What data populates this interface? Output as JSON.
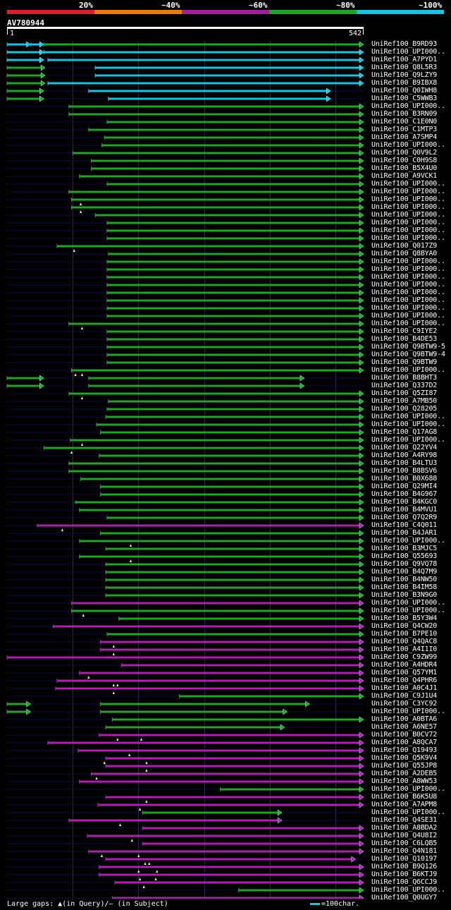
{
  "scale": {
    "labels": [
      "20%",
      "~40%",
      "~60%",
      "~80%",
      "~100%"
    ],
    "colors": [
      "#e01b2d",
      "#e87a12",
      "#a0209a",
      "#22a329",
      "#1ec0dd"
    ]
  },
  "query": {
    "name": "AV780944",
    "start": "1",
    "end": "542",
    "length": 542
  },
  "colors": {
    "cyan": "#1ec0dd",
    "green": "#22a329",
    "magenta": "#b01fb0",
    "backbone": "#0c0c4a",
    "gap": "#ffff99"
  },
  "hits": [
    {
      "name": "UniRef100_B9RD93",
      "segs": [
        [
          0,
          36,
          "cyan"
        ],
        [
          36,
          56,
          "cyan"
        ],
        [
          56,
          542,
          "green"
        ]
      ],
      "gaps": []
    },
    {
      "name": "UniRef100_UPI000..",
      "segs": [
        [
          0,
          56,
          "cyan"
        ],
        [
          56,
          542,
          "cyan"
        ]
      ],
      "gaps": []
    },
    {
      "name": "UniRef100_A7PYD1",
      "segs": [
        [
          0,
          56,
          "cyan"
        ],
        [
          62,
          542,
          "cyan"
        ]
      ],
      "gaps": []
    },
    {
      "name": "UniRef100_Q8L5R3",
      "segs": [
        [
          0,
          58,
          "green"
        ],
        [
          134,
          542,
          "cyan"
        ]
      ],
      "gaps": []
    },
    {
      "name": "UniRef100_Q9LZY9",
      "segs": [
        [
          0,
          58,
          "green"
        ],
        [
          134,
          542,
          "cyan"
        ]
      ],
      "gaps": []
    },
    {
      "name": "UniRef100_B9IBX8",
      "segs": [
        [
          0,
          58,
          "green"
        ],
        [
          62,
          542,
          "cyan"
        ]
      ],
      "gaps": []
    },
    {
      "name": "UniRef100_Q0IWH8",
      "segs": [
        [
          0,
          56,
          "green"
        ],
        [
          124,
          492,
          "cyan"
        ]
      ],
      "gaps": []
    },
    {
      "name": "UniRef100_C5WWB3",
      "segs": [
        [
          0,
          56,
          "green"
        ],
        [
          154,
          492,
          "cyan"
        ]
      ],
      "gaps": []
    },
    {
      "name": "UniRef100_UPI000..",
      "segs": [
        [
          94,
          542,
          "green"
        ]
      ],
      "gaps": []
    },
    {
      "name": "UniRef100_B3RN09",
      "segs": [
        [
          94,
          542,
          "green"
        ]
      ],
      "gaps": []
    },
    {
      "name": "UniRef100_C1E0N0",
      "segs": [
        [
          152,
          542,
          "green"
        ]
      ],
      "gaps": []
    },
    {
      "name": "UniRef100_C1MTP3",
      "segs": [
        [
          124,
          542,
          "green"
        ]
      ],
      "gaps": []
    },
    {
      "name": "UniRef100_A7SMP4",
      "segs": [
        [
          148,
          542,
          "green"
        ]
      ],
      "gaps": []
    },
    {
      "name": "UniRef100_UPI000..",
      "segs": [
        [
          144,
          542,
          "green"
        ]
      ],
      "gaps": []
    },
    {
      "name": "UniRef100_Q0V9L2",
      "segs": [
        [
          100,
          542,
          "green"
        ]
      ],
      "gaps": []
    },
    {
      "name": "UniRef100_C0H9S8",
      "segs": [
        [
          128,
          542,
          "green"
        ]
      ],
      "gaps": []
    },
    {
      "name": "UniRef100_B5X4U0",
      "segs": [
        [
          128,
          542,
          "green"
        ]
      ],
      "gaps": []
    },
    {
      "name": "UniRef100_A9VCK1",
      "segs": [
        [
          110,
          542,
          "green"
        ]
      ],
      "gaps": []
    },
    {
      "name": "UniRef100_UPI000..",
      "segs": [
        [
          152,
          542,
          "green"
        ]
      ],
      "gaps": []
    },
    {
      "name": "UniRef100_UPI000..",
      "segs": [
        [
          94,
          542,
          "green"
        ]
      ],
      "gaps": []
    },
    {
      "name": "UniRef100_UPI000..",
      "segs": [
        [
          98,
          542,
          "green"
        ]
      ],
      "gaps": [
        112
      ]
    },
    {
      "name": "UniRef100_UPI000..",
      "segs": [
        [
          98,
          542,
          "green"
        ]
      ],
      "gaps": [
        112
      ]
    },
    {
      "name": "UniRef100_UPI000..",
      "segs": [
        [
          134,
          542,
          "green"
        ]
      ],
      "gaps": []
    },
    {
      "name": "UniRef100_UPI000..",
      "segs": [
        [
          152,
          542,
          "green"
        ]
      ],
      "gaps": []
    },
    {
      "name": "UniRef100_UPI000..",
      "segs": [
        [
          152,
          542,
          "green"
        ]
      ],
      "gaps": []
    },
    {
      "name": "UniRef100_UPI000..",
      "segs": [
        [
          152,
          542,
          "green"
        ]
      ],
      "gaps": []
    },
    {
      "name": "UniRef100_Q017Z9",
      "segs": [
        [
          76,
          542,
          "green"
        ]
      ],
      "gaps": [
        102
      ]
    },
    {
      "name": "UniRef100_Q8BYA0",
      "segs": [
        [
          154,
          542,
          "green"
        ]
      ],
      "gaps": []
    },
    {
      "name": "UniRef100_UPI000..",
      "segs": [
        [
          152,
          542,
          "green"
        ]
      ],
      "gaps": []
    },
    {
      "name": "UniRef100_UPI000..",
      "segs": [
        [
          152,
          542,
          "green"
        ]
      ],
      "gaps": []
    },
    {
      "name": "UniRef100_UPI000..",
      "segs": [
        [
          152,
          542,
          "green"
        ]
      ],
      "gaps": []
    },
    {
      "name": "UniRef100_UPI000..",
      "segs": [
        [
          152,
          542,
          "green"
        ]
      ],
      "gaps": []
    },
    {
      "name": "UniRef100_UPI000..",
      "segs": [
        [
          152,
          542,
          "green"
        ]
      ],
      "gaps": []
    },
    {
      "name": "UniRef100_UPI000..",
      "segs": [
        [
          152,
          542,
          "green"
        ]
      ],
      "gaps": []
    },
    {
      "name": "UniRef100_UPI000..",
      "segs": [
        [
          152,
          542,
          "green"
        ]
      ],
      "gaps": []
    },
    {
      "name": "UniRef100_UPI000..",
      "segs": [
        [
          152,
          542,
          "green"
        ]
      ],
      "gaps": []
    },
    {
      "name": "UniRef100_UPI000..",
      "segs": [
        [
          94,
          542,
          "green"
        ]
      ],
      "gaps": [
        114
      ]
    },
    {
      "name": "UniRef100_C9IYE2",
      "segs": [
        [
          152,
          542,
          "green"
        ]
      ],
      "gaps": []
    },
    {
      "name": "UniRef100_B4DE53",
      "segs": [
        [
          152,
          542,
          "green"
        ]
      ],
      "gaps": []
    },
    {
      "name": "UniRef100_Q9BTW9-5",
      "segs": [
        [
          152,
          542,
          "green"
        ]
      ],
      "gaps": []
    },
    {
      "name": "UniRef100_Q9BTW9-4",
      "segs": [
        [
          152,
          542,
          "green"
        ]
      ],
      "gaps": []
    },
    {
      "name": "UniRef100_Q9BTW9",
      "segs": [
        [
          152,
          542,
          "green"
        ]
      ],
      "gaps": []
    },
    {
      "name": "UniRef100_UPI000..",
      "segs": [
        [
          98,
          542,
          "green"
        ]
      ],
      "gaps": [
        104,
        114
      ]
    },
    {
      "name": "UniRef100_B8BHT3",
      "segs": [
        [
          0,
          56,
          "green"
        ],
        [
          124,
          452,
          "green"
        ]
      ],
      "gaps": []
    },
    {
      "name": "UniRef100_Q337D2",
      "segs": [
        [
          0,
          56,
          "green"
        ],
        [
          124,
          452,
          "green"
        ]
      ],
      "gaps": []
    },
    {
      "name": "UniRef100_Q5ZI87",
      "segs": [
        [
          94,
          542,
          "green"
        ]
      ],
      "gaps": [
        114
      ]
    },
    {
      "name": "UniRef100_A7MB50",
      "segs": [
        [
          154,
          542,
          "green"
        ]
      ],
      "gaps": []
    },
    {
      "name": "UniRef100_Q28205",
      "segs": [
        [
          152,
          542,
          "green"
        ]
      ],
      "gaps": []
    },
    {
      "name": "UniRef100_UPI000..",
      "segs": [
        [
          150,
          542,
          "green"
        ]
      ],
      "gaps": []
    },
    {
      "name": "UniRef100_UPI000..",
      "segs": [
        [
          136,
          542,
          "green"
        ]
      ],
      "gaps": []
    },
    {
      "name": "UniRef100_Q17AG8",
      "segs": [
        [
          142,
          542,
          "green"
        ]
      ],
      "gaps": []
    },
    {
      "name": "UniRef100_UPI000..",
      "segs": [
        [
          96,
          542,
          "green"
        ]
      ],
      "gaps": [
        114
      ]
    },
    {
      "name": "UniRef100_Q22YV4",
      "segs": [
        [
          56,
          542,
          "green"
        ]
      ],
      "gaps": [
        98
      ]
    },
    {
      "name": "UniRef100_A4RY98",
      "segs": [
        [
          140,
          542,
          "green"
        ]
      ],
      "gaps": []
    },
    {
      "name": "UniRef100_B4LTU3",
      "segs": [
        [
          94,
          542,
          "green"
        ]
      ],
      "gaps": []
    },
    {
      "name": "UniRef100_B8BSV6",
      "segs": [
        [
          94,
          542,
          "green"
        ]
      ],
      "gaps": []
    },
    {
      "name": "UniRef100_B0X688",
      "segs": [
        [
          112,
          542,
          "green"
        ]
      ],
      "gaps": []
    },
    {
      "name": "UniRef100_Q29MI4",
      "segs": [
        [
          142,
          542,
          "green"
        ]
      ],
      "gaps": []
    },
    {
      "name": "UniRef100_B4G967",
      "segs": [
        [
          142,
          542,
          "green"
        ]
      ],
      "gaps": []
    },
    {
      "name": "UniRef100_B4KGC0",
      "segs": [
        [
          104,
          542,
          "green"
        ]
      ],
      "gaps": []
    },
    {
      "name": "UniRef100_B4MVU1",
      "segs": [
        [
          110,
          542,
          "green"
        ]
      ],
      "gaps": []
    },
    {
      "name": "UniRef100_Q7Q2R9",
      "segs": [
        [
          152,
          542,
          "green"
        ]
      ],
      "gaps": []
    },
    {
      "name": "UniRef100_C4Q011",
      "segs": [
        [
          46,
          542,
          "magenta"
        ]
      ],
      "gaps": [
        84
      ]
    },
    {
      "name": "UniRef100_B4JAR1",
      "segs": [
        [
          142,
          542,
          "green"
        ]
      ],
      "gaps": []
    },
    {
      "name": "UniRef100_UPI000..",
      "segs": [
        [
          110,
          542,
          "green"
        ]
      ],
      "gaps": [
        188
      ]
    },
    {
      "name": "UniRef100_B3MJC5",
      "segs": [
        [
          150,
          542,
          "green"
        ]
      ],
      "gaps": []
    },
    {
      "name": "UniRef100_Q55693",
      "segs": [
        [
          110,
          542,
          "green"
        ]
      ],
      "gaps": [
        188
      ]
    },
    {
      "name": "UniRef100_Q9VQ78",
      "segs": [
        [
          150,
          542,
          "green"
        ]
      ],
      "gaps": []
    },
    {
      "name": "UniRef100_B4Q7M9",
      "segs": [
        [
          150,
          542,
          "green"
        ]
      ],
      "gaps": []
    },
    {
      "name": "UniRef100_B4NW50",
      "segs": [
        [
          150,
          542,
          "green"
        ]
      ],
      "gaps": []
    },
    {
      "name": "UniRef100_B4IM58",
      "segs": [
        [
          150,
          542,
          "green"
        ]
      ],
      "gaps": []
    },
    {
      "name": "UniRef100_B3N9G0",
      "segs": [
        [
          150,
          542,
          "green"
        ]
      ],
      "gaps": []
    },
    {
      "name": "UniRef100_UPI000..",
      "segs": [
        [
          98,
          542,
          "magenta"
        ]
      ],
      "gaps": []
    },
    {
      "name": "UniRef100_UPI000..",
      "segs": [
        [
          98,
          542,
          "green"
        ]
      ],
      "gaps": [
        116
      ]
    },
    {
      "name": "UniRef100_B5Y3W4",
      "segs": [
        [
          170,
          542,
          "green"
        ]
      ],
      "gaps": []
    },
    {
      "name": "UniRef100_Q4CW20",
      "segs": [
        [
          70,
          542,
          "magenta"
        ]
      ],
      "gaps": []
    },
    {
      "name": "UniRef100_B7PE10",
      "segs": [
        [
          152,
          542,
          "green"
        ]
      ],
      "gaps": []
    },
    {
      "name": "UniRef100_Q4QAC8",
      "segs": [
        [
          142,
          542,
          "magenta"
        ]
      ],
      "gaps": [
        162
      ]
    },
    {
      "name": "UniRef100_A4I1I0",
      "segs": [
        [
          142,
          542,
          "magenta"
        ]
      ],
      "gaps": [
        162
      ]
    },
    {
      "name": "UniRef100_C9ZW99",
      "segs": [
        [
          0,
          542,
          "magenta"
        ]
      ],
      "gaps": []
    },
    {
      "name": "UniRef100_A4HDR4",
      "segs": [
        [
          174,
          542,
          "magenta"
        ]
      ],
      "gaps": []
    },
    {
      "name": "UniRef100_Q57YM1",
      "segs": [
        [
          110,
          542,
          "magenta"
        ]
      ],
      "gaps": [
        124
      ]
    },
    {
      "name": "UniRef100_Q4PHR6",
      "segs": [
        [
          76,
          542,
          "magenta"
        ]
      ],
      "gaps": [
        162,
        168
      ]
    },
    {
      "name": "UniRef100_A0C4J1",
      "segs": [
        [
          74,
          542,
          "magenta"
        ]
      ],
      "gaps": [
        162
      ]
    },
    {
      "name": "UniRef100_C9J1U4",
      "segs": [
        [
          262,
          542,
          "green"
        ]
      ],
      "gaps": []
    },
    {
      "name": "UniRef100_C3YC92",
      "segs": [
        [
          0,
          36,
          "green"
        ],
        [
          142,
          460,
          "green"
        ]
      ],
      "gaps": []
    },
    {
      "name": "UniRef100_UPI000..",
      "segs": [
        [
          0,
          36,
          "green"
        ],
        [
          142,
          426,
          "green"
        ]
      ],
      "gaps": []
    },
    {
      "name": "UniRef100_A0BTA6",
      "segs": [
        [
          160,
          542,
          "green"
        ]
      ],
      "gaps": []
    },
    {
      "name": "UniRef100_A6NE57",
      "segs": [
        [
          150,
          422,
          "green"
        ]
      ],
      "gaps": []
    },
    {
      "name": "UniRef100_B0CV72",
      "segs": [
        [
          140,
          542,
          "magenta"
        ]
      ],
      "gaps": [
        168,
        204
      ]
    },
    {
      "name": "UniRef100_A8QCA7",
      "segs": [
        [
          62,
          542,
          "magenta"
        ]
      ],
      "gaps": []
    },
    {
      "name": "UniRef100_Q19493",
      "segs": [
        [
          108,
          542,
          "magenta"
        ]
      ],
      "gaps": [
        186
      ]
    },
    {
      "name": "UniRef100_Q5K9V4",
      "segs": [
        [
          150,
          542,
          "magenta"
        ]
      ],
      "gaps": [
        148,
        212
      ]
    },
    {
      "name": "UniRef100_Q55JP8",
      "segs": [
        [
          150,
          542,
          "magenta"
        ]
      ],
      "gaps": [
        212
      ]
    },
    {
      "name": "UniRef100_A2DEB5",
      "segs": [
        [
          128,
          542,
          "magenta"
        ]
      ],
      "gaps": [
        136
      ]
    },
    {
      "name": "UniRef100_A8WW53",
      "segs": [
        [
          110,
          542,
          "magenta"
        ]
      ],
      "gaps": []
    },
    {
      "name": "UniRef100_UPI000..",
      "segs": [
        [
          324,
          542,
          "green"
        ]
      ],
      "gaps": []
    },
    {
      "name": "UniRef100_B6K5U8",
      "segs": [
        [
          150,
          542,
          "magenta"
        ]
      ],
      "gaps": [
        212
      ]
    },
    {
      "name": "UniRef100_A7APM8",
      "segs": [
        [
          138,
          542,
          "magenta"
        ]
      ],
      "gaps": [
        202
      ]
    },
    {
      "name": "UniRef100_UPI000..",
      "segs": [
        [
          206,
          418,
          "green"
        ]
      ],
      "gaps": []
    },
    {
      "name": "UniRef100_Q4SE31",
      "segs": [
        [
          94,
          418,
          "magenta"
        ]
      ],
      "gaps": [
        172
      ]
    },
    {
      "name": "UniRef100_A8BDA2",
      "segs": [
        [
          206,
          542,
          "magenta"
        ]
      ],
      "gaps": []
    },
    {
      "name": "UniRef100_Q4U8I2",
      "segs": [
        [
          122,
          542,
          "magenta"
        ]
      ],
      "gaps": [
        190
      ]
    },
    {
      "name": "UniRef100_C6LQB5",
      "segs": [
        [
          206,
          542,
          "magenta"
        ]
      ],
      "gaps": []
    },
    {
      "name": "UniRef100_Q4N181",
      "segs": [
        [
          124,
          542,
          "magenta"
        ]
      ],
      "gaps": [
        144,
        200
      ]
    },
    {
      "name": "UniRef100_Q10197",
      "segs": [
        [
          150,
          530,
          "magenta"
        ]
      ],
      "gaps": [
        210,
        216
      ]
    },
    {
      "name": "UniRef100_B9Q126",
      "segs": [
        [
          140,
          542,
          "magenta"
        ]
      ],
      "gaps": [
        200,
        228
      ]
    },
    {
      "name": "UniRef100_B6KTJ9",
      "segs": [
        [
          140,
          542,
          "magenta"
        ]
      ],
      "gaps": [
        202,
        226
      ]
    },
    {
      "name": "UniRef100_Q6CCJ9",
      "segs": [
        [
          164,
          542,
          "magenta"
        ]
      ],
      "gaps": [
        208
      ]
    },
    {
      "name": "UniRef100_UPI000..",
      "segs": [
        [
          352,
          542,
          "green"
        ]
      ],
      "gaps": []
    },
    {
      "name": "UniRef100_Q0UGY7",
      "segs": [
        [
          160,
          542,
          "magenta"
        ]
      ],
      "gaps": [
        210
      ]
    }
  ],
  "legend": {
    "text": "Large gaps: ▲(in Query)/— (in Subject)",
    "key": "=100char."
  }
}
